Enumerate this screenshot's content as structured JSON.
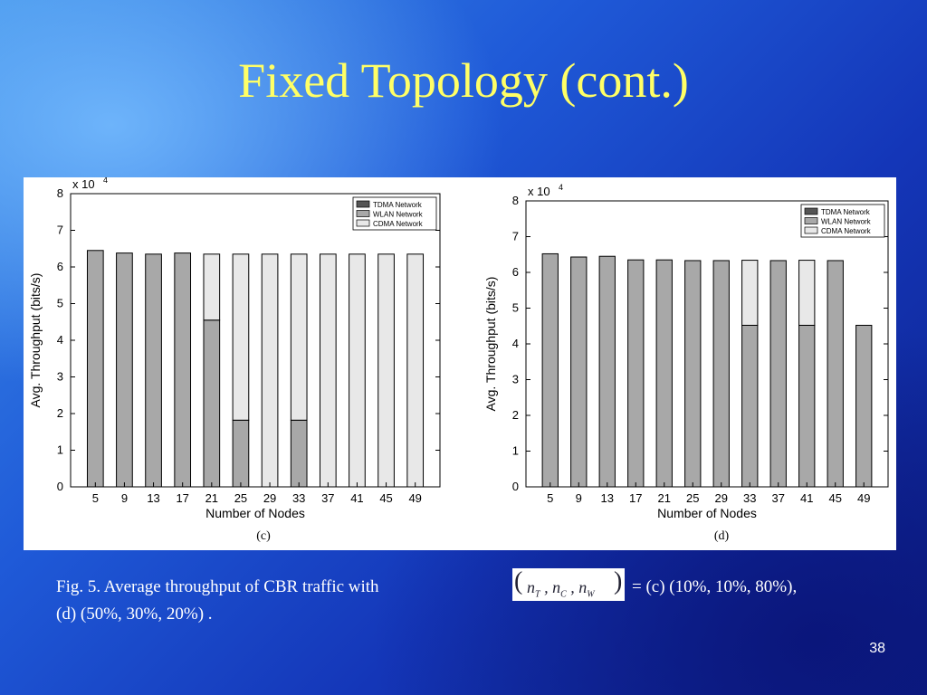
{
  "slide": {
    "title": "Fixed Topology (cont.)",
    "page_number": "38",
    "caption": {
      "line1_prefix": "Fig. 5. Average throughput of CBR traffic with",
      "formula": {
        "n_t": "n",
        "sub_t": "T",
        "n_c": "n",
        "sub_c": "C",
        "n_w": "n",
        "sub_w": "W"
      },
      "line1_suffix": "=  (c) (10%, 10%, 80%),",
      "line2": "(d) (50%, 30%, 20%) ."
    }
  },
  "colors": {
    "tdma": "#555555",
    "wlan": "#a8a8a8",
    "cdma": "#e8e8e8",
    "title": "#ffff66"
  },
  "chart_data": [
    {
      "type": "bar",
      "stacked": true,
      "panel_label": "(c)",
      "xlabel": "Number of Nodes",
      "ylabel": "Avg. Throughput (bits/s)",
      "y_multiplier": "x 10",
      "y_multiplier_exp": "4",
      "ylim": [
        0,
        8
      ],
      "yticks": [
        0,
        1,
        2,
        3,
        4,
        5,
        6,
        7,
        8
      ],
      "legend_position": "top-right",
      "categories": [
        "5",
        "9",
        "13",
        "17",
        "21",
        "25",
        "29",
        "33",
        "37",
        "41",
        "45",
        "49"
      ],
      "series": [
        {
          "name": "TDMA Network",
          "values": [
            0,
            0,
            0,
            0,
            0,
            0,
            0,
            0,
            0,
            0,
            0,
            0
          ]
        },
        {
          "name": "WLAN Network",
          "values": [
            6.45,
            6.38,
            6.35,
            6.38,
            4.55,
            1.82,
            0,
            1.82,
            0,
            0,
            0,
            0
          ]
        },
        {
          "name": "CDMA Network",
          "values": [
            0,
            0,
            0,
            0,
            1.8,
            4.53,
            6.35,
            4.53,
            6.35,
            6.35,
            6.35,
            6.35
          ]
        }
      ]
    },
    {
      "type": "bar",
      "stacked": true,
      "panel_label": "(d)",
      "xlabel": "Number of Nodes",
      "ylabel": "Avg. Throughput (bits/s)",
      "y_multiplier": "x 10",
      "y_multiplier_exp": "4",
      "ylim": [
        0,
        8
      ],
      "yticks": [
        0,
        1,
        2,
        3,
        4,
        5,
        6,
        7,
        8
      ],
      "legend_position": "top-right",
      "categories": [
        "5",
        "9",
        "13",
        "17",
        "21",
        "25",
        "29",
        "33",
        "37",
        "41",
        "45",
        "49"
      ],
      "series": [
        {
          "name": "TDMA Network",
          "values": [
            0,
            0,
            0,
            0,
            0,
            0,
            0,
            0,
            0,
            0,
            0,
            0
          ]
        },
        {
          "name": "WLAN Network",
          "values": [
            6.52,
            6.43,
            6.45,
            6.35,
            6.35,
            6.33,
            6.33,
            4.52,
            6.33,
            4.52,
            6.33,
            4.52
          ]
        },
        {
          "name": "CDMA Network",
          "values": [
            0,
            0,
            0,
            0,
            0,
            0,
            0,
            1.82,
            0,
            1.82,
            0,
            0
          ]
        }
      ]
    }
  ]
}
